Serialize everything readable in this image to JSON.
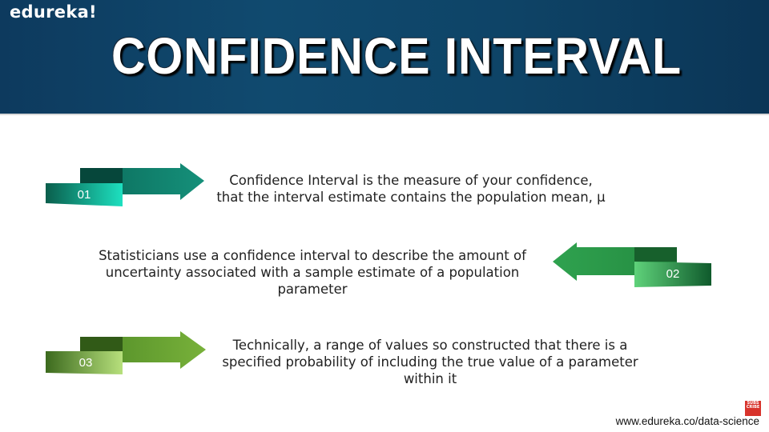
{
  "header": {
    "logo": "edureka!",
    "title": "CONFIDENCE INTERVAL"
  },
  "items": [
    {
      "number": "01",
      "text": "Confidence Interval is the measure of your confidence, that the interval estimate contains the population mean, μ"
    },
    {
      "number": "02",
      "text": "Statisticians use a confidence interval to describe the amount of uncertainty associated with a sample estimate of a population parameter"
    },
    {
      "number": "03",
      "text": "Technically, a range of values so constructed that there is a specified probability of including the true value of a parameter within it"
    }
  ],
  "footer": {
    "url": "www.edureka.co/data-science",
    "badge": "SUBS CRIBE"
  },
  "colors": {
    "header_bg": "#0d3a5e",
    "arrow_1": "#138a72",
    "arrow_2": "#2e9e4c",
    "arrow_3": "#6aa533"
  }
}
